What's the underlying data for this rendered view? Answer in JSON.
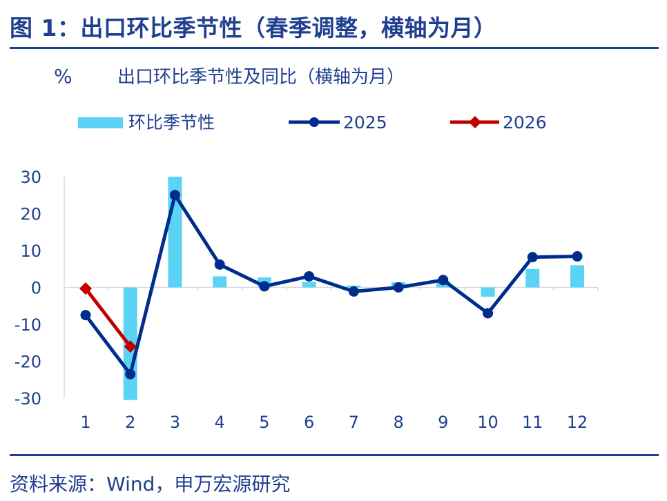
{
  "figure": {
    "title": "图 1：出口环比季节性（春季调整，横轴为月）",
    "source": "资料来源：Wind，申万宏源研究"
  },
  "colors": {
    "bar": "#5BD3F5",
    "line_2025": "#002C8C",
    "line_2026": "#C00000",
    "text": "#1F3F8F",
    "axis": "#D9D9D9"
  },
  "chart_data": {
    "type": "bar",
    "unit": "%",
    "subtitle": "出口环比季节性及同比（横轴为月）",
    "categories": [
      "1",
      "2",
      "3",
      "4",
      "5",
      "6",
      "7",
      "8",
      "9",
      "10",
      "11",
      "12"
    ],
    "ylim": [
      -30,
      30
    ],
    "yticks": [
      "30",
      "20",
      "10",
      "0",
      "-10",
      "-20",
      "-30"
    ],
    "grid": false,
    "legend_position": "top",
    "series": [
      {
        "name": "环比季节性",
        "type": "bar",
        "values": [
          null,
          -30.5,
          30.0,
          3.0,
          2.7,
          1.5,
          0.5,
          1.4,
          1.8,
          -2.5,
          5.0,
          6.0
        ]
      },
      {
        "name": "2025",
        "type": "line",
        "marker": "circle",
        "values": [
          -7.5,
          -23.5,
          25.0,
          6.2,
          0.3,
          3.0,
          -1.1,
          0.0,
          2.0,
          -7.0,
          8.2,
          8.4
        ]
      },
      {
        "name": "2026",
        "type": "line",
        "marker": "diamond",
        "values": [
          -0.3,
          -16.0,
          null,
          null,
          null,
          null,
          null,
          null,
          null,
          null,
          null,
          null
        ]
      }
    ]
  }
}
